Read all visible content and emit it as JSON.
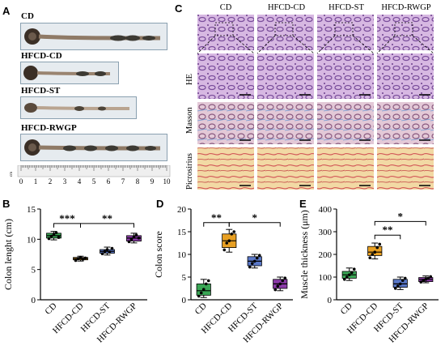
{
  "panel_letters": {
    "a": "A",
    "b": "B",
    "c": "C",
    "d": "D",
    "e": "E"
  },
  "panel_a": {
    "groups": [
      "CD",
      "HFCD-CD",
      "HFCD-ST",
      "HFCD-RWGP"
    ],
    "ruler_ticks": [
      "0",
      "1",
      "2",
      "3",
      "4",
      "5",
      "6",
      "7",
      "8",
      "9",
      "10"
    ],
    "ruler_unit": "cm"
  },
  "panel_c": {
    "columns": [
      "CD",
      "HFCD-CD",
      "HFCD-ST",
      "HFCD-RWGP"
    ],
    "rows": [
      "HE",
      "Masson",
      "Picrosirius"
    ]
  },
  "colors": {
    "cd": "#3aa655",
    "hfcd_cd": "#e8a023",
    "hfcd_st": "#5a78c8",
    "hfcd_rwgp": "#8b3aa8",
    "he_stain": "#b58ac9",
    "masson_stain": "#c9a8c4",
    "picrosirius_stain": "#e9c98f"
  },
  "chart_data": [
    {
      "type": "box",
      "panel": "B",
      "categories": [
        "CD",
        "HFCD-CD",
        "HFCD-ST",
        "HFCD-RWGP"
      ],
      "ylabel": "Colon lenght (cm)",
      "ylim": [
        0,
        15
      ],
      "yticks": [
        "0",
        "5",
        "10",
        "15"
      ],
      "boxes": [
        {
          "min": 9.9,
          "q1": 10.2,
          "median": 10.6,
          "q3": 11.0,
          "max": 11.3
        },
        {
          "min": 6.4,
          "q1": 6.6,
          "median": 6.8,
          "q3": 7.0,
          "max": 7.2
        },
        {
          "min": 7.4,
          "q1": 7.7,
          "median": 8.0,
          "q3": 8.3,
          "max": 8.7
        },
        {
          "min": 9.4,
          "q1": 9.7,
          "median": 10.2,
          "q3": 10.6,
          "max": 11.0
        }
      ],
      "points": [
        [
          10.1,
          10.5,
          10.8,
          11.1,
          10.3
        ],
        [
          6.5,
          6.8,
          7.0,
          6.7,
          6.9
        ],
        [
          7.6,
          8.0,
          8.3,
          7.9,
          8.5
        ],
        [
          9.6,
          10.0,
          10.4,
          10.7,
          10.2
        ]
      ],
      "significance": [
        {
          "from": 0,
          "to": 1,
          "label": "***",
          "y": 12.6
        },
        {
          "from": 1,
          "to": 3,
          "label": "**",
          "y": 12.6
        }
      ]
    },
    {
      "type": "box",
      "panel": "D",
      "categories": [
        "CD",
        "HFCD-CD",
        "HFCD-ST",
        "HFCD-RWGP"
      ],
      "ylabel": "Colon score",
      "ylim": [
        0,
        20
      ],
      "yticks": [
        "0",
        "5",
        "10",
        "15",
        "20"
      ],
      "boxes": [
        {
          "min": 0.5,
          "q1": 1.0,
          "median": 2.0,
          "q3": 3.5,
          "max": 4.5
        },
        {
          "min": 10.5,
          "q1": 11.5,
          "median": 13.0,
          "q3": 14.5,
          "max": 15.5
        },
        {
          "min": 7.0,
          "q1": 7.5,
          "median": 8.5,
          "q3": 9.5,
          "max": 10.0
        },
        {
          "min": 2.0,
          "q1": 2.5,
          "median": 3.5,
          "q3": 4.5,
          "max": 5.0
        }
      ],
      "points": [
        [
          0.8,
          1.5,
          2.3,
          3.5,
          4.2
        ],
        [
          11.0,
          12.5,
          13.0,
          14.5,
          15.0
        ],
        [
          7.2,
          8.0,
          8.5,
          9.2,
          9.8
        ],
        [
          2.2,
          3.0,
          3.5,
          4.2,
          4.8
        ]
      ],
      "significance": [
        {
          "from": 0,
          "to": 1,
          "label": "**",
          "y": 17.0
        },
        {
          "from": 1,
          "to": 3,
          "label": "*",
          "y": 17.0
        }
      ]
    },
    {
      "type": "box",
      "panel": "E",
      "categories": [
        "CD",
        "HFCD-CD",
        "HFCD-ST",
        "HFCD-RWGP"
      ],
      "ylabel": "Muscle thickness (μm)",
      "ylim": [
        0,
        400
      ],
      "yticks": [
        "0",
        "100",
        "200",
        "300",
        "400"
      ],
      "boxes": [
        {
          "min": 85,
          "q1": 95,
          "median": 110,
          "q3": 125,
          "max": 140
        },
        {
          "min": 180,
          "q1": 195,
          "median": 210,
          "q3": 235,
          "max": 250
        },
        {
          "min": 45,
          "q1": 55,
          "median": 70,
          "q3": 90,
          "max": 100
        },
        {
          "min": 75,
          "q1": 80,
          "median": 90,
          "q3": 98,
          "max": 105
        }
      ],
      "points": [
        [
          90,
          100,
          110,
          120,
          135
        ],
        [
          185,
          200,
          210,
          230,
          245
        ],
        [
          50,
          60,
          70,
          85,
          95
        ],
        [
          78,
          85,
          90,
          95,
          102
        ]
      ],
      "significance": [
        {
          "from": 1,
          "to": 2,
          "label": "**",
          "y": 285
        },
        {
          "from": 1,
          "to": 3,
          "label": "*",
          "y": 345
        }
      ]
    }
  ]
}
